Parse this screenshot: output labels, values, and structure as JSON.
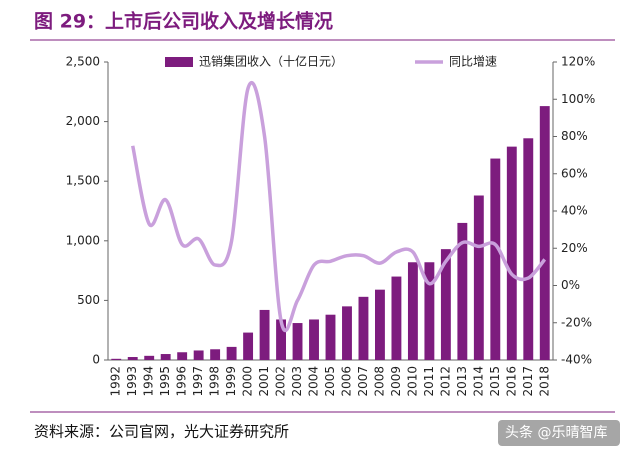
{
  "chart_data": {
    "type": "bar_line",
    "title": "图 29：上市后公司收入及增长情况",
    "source": "资料来源：公司官网，光大证券研究所",
    "watermark": "头条 @乐晴智库",
    "categories": [
      "1992",
      "1993",
      "1994",
      "1995",
      "1996",
      "1997",
      "1998",
      "1999",
      "2000",
      "2001",
      "2002",
      "2003",
      "2004",
      "2005",
      "2006",
      "2007",
      "2008",
      "2009",
      "2010",
      "2011",
      "2012",
      "2013",
      "2014",
      "2015",
      "2016",
      "2017",
      "2018"
    ],
    "series": [
      {
        "name": "迅销集团收入（十亿日元）",
        "type": "bar",
        "color": "#7d1c7e",
        "values": [
          10,
          25,
          35,
          50,
          65,
          80,
          90,
          110,
          230,
          420,
          340,
          310,
          340,
          380,
          450,
          530,
          590,
          700,
          820,
          820,
          930,
          1150,
          1380,
          1690,
          1790,
          1860,
          2130
        ]
      },
      {
        "name": "同比增速",
        "type": "line",
        "axis": "y2",
        "color": "#c9a0dc",
        "values": [
          null,
          75,
          33,
          46,
          22,
          25,
          11,
          24,
          106,
          80,
          -19,
          -8,
          11,
          13,
          16,
          16,
          12,
          18,
          18,
          1,
          13,
          23,
          21,
          22,
          6,
          4,
          14
        ]
      }
    ],
    "ylim": [
      0,
      2500
    ],
    "yticks": [
      0,
      500,
      {
        "value": 1000,
        "label": "1,000"
      },
      {
        "value": 1500,
        "label": "1,500"
      },
      {
        "value": 2000,
        "label": "2,000"
      },
      {
        "value": 2500,
        "label": "2,500"
      }
    ],
    "y2lim": [
      -40,
      120
    ],
    "y2ticks": [
      {
        "value": -40,
        "label": "-40%"
      },
      {
        "value": -20,
        "label": "-20%"
      },
      {
        "value": 0,
        "label": "0%"
      },
      {
        "value": 20,
        "label": "20%"
      },
      {
        "value": 40,
        "label": "40%"
      },
      {
        "value": 60,
        "label": "60%"
      },
      {
        "value": 80,
        "label": "80%"
      },
      {
        "value": 100,
        "label": "100%"
      },
      {
        "value": 120,
        "label": "120%"
      }
    ],
    "legend": "top"
  }
}
